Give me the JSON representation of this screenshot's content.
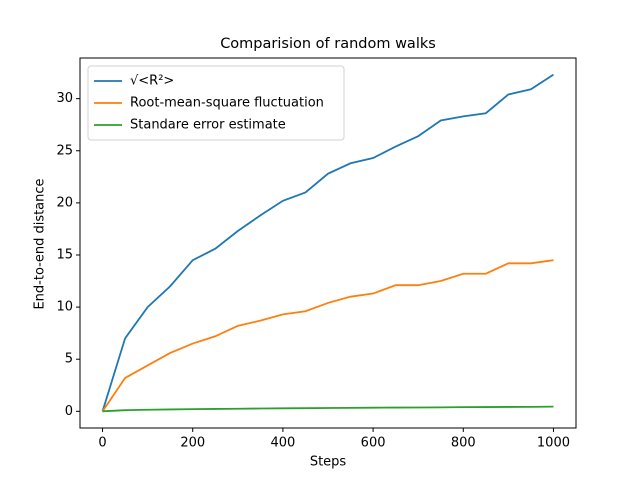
{
  "chart_data": {
    "type": "line",
    "title": "Comparision of random walks",
    "x_label": "Steps",
    "y_label": "End-to-end distance",
    "x": [
      0,
      50,
      100,
      150,
      200,
      250,
      300,
      350,
      400,
      450,
      500,
      550,
      600,
      650,
      700,
      750,
      800,
      850,
      900,
      950,
      1000
    ],
    "series": [
      {
        "name": "√<R²>",
        "color": "#1f77b4",
        "values": [
          0,
          7.0,
          10.0,
          12.0,
          14.5,
          15.6,
          17.3,
          18.8,
          20.2,
          21.0,
          22.8,
          23.8,
          24.3,
          25.4,
          26.4,
          27.9,
          28.3,
          28.6,
          30.4,
          30.9,
          32.3
        ]
      },
      {
        "name": "Root-mean-square fluctuation",
        "color": "#ff7f0e",
        "values": [
          0,
          3.2,
          4.4,
          5.6,
          6.5,
          7.2,
          8.2,
          8.7,
          9.3,
          9.6,
          10.4,
          11.0,
          11.3,
          12.1,
          12.1,
          12.5,
          13.2,
          13.2,
          14.2,
          14.2,
          14.5
        ]
      },
      {
        "name": "Standare error estimate",
        "color": "#2ca02c",
        "values": [
          0,
          0.11,
          0.15,
          0.18,
          0.21,
          0.23,
          0.25,
          0.27,
          0.29,
          0.3,
          0.32,
          0.33,
          0.35,
          0.36,
          0.37,
          0.38,
          0.4,
          0.41,
          0.42,
          0.43,
          0.45
        ]
      }
    ],
    "xlim": [
      -50,
      1050
    ],
    "ylim": [
      -1.6,
      33.9
    ],
    "xticks": [
      0,
      200,
      400,
      600,
      800,
      1000
    ],
    "yticks": [
      0,
      5,
      10,
      15,
      20,
      25,
      30
    ],
    "grid": false,
    "legend": "upper-left"
  }
}
